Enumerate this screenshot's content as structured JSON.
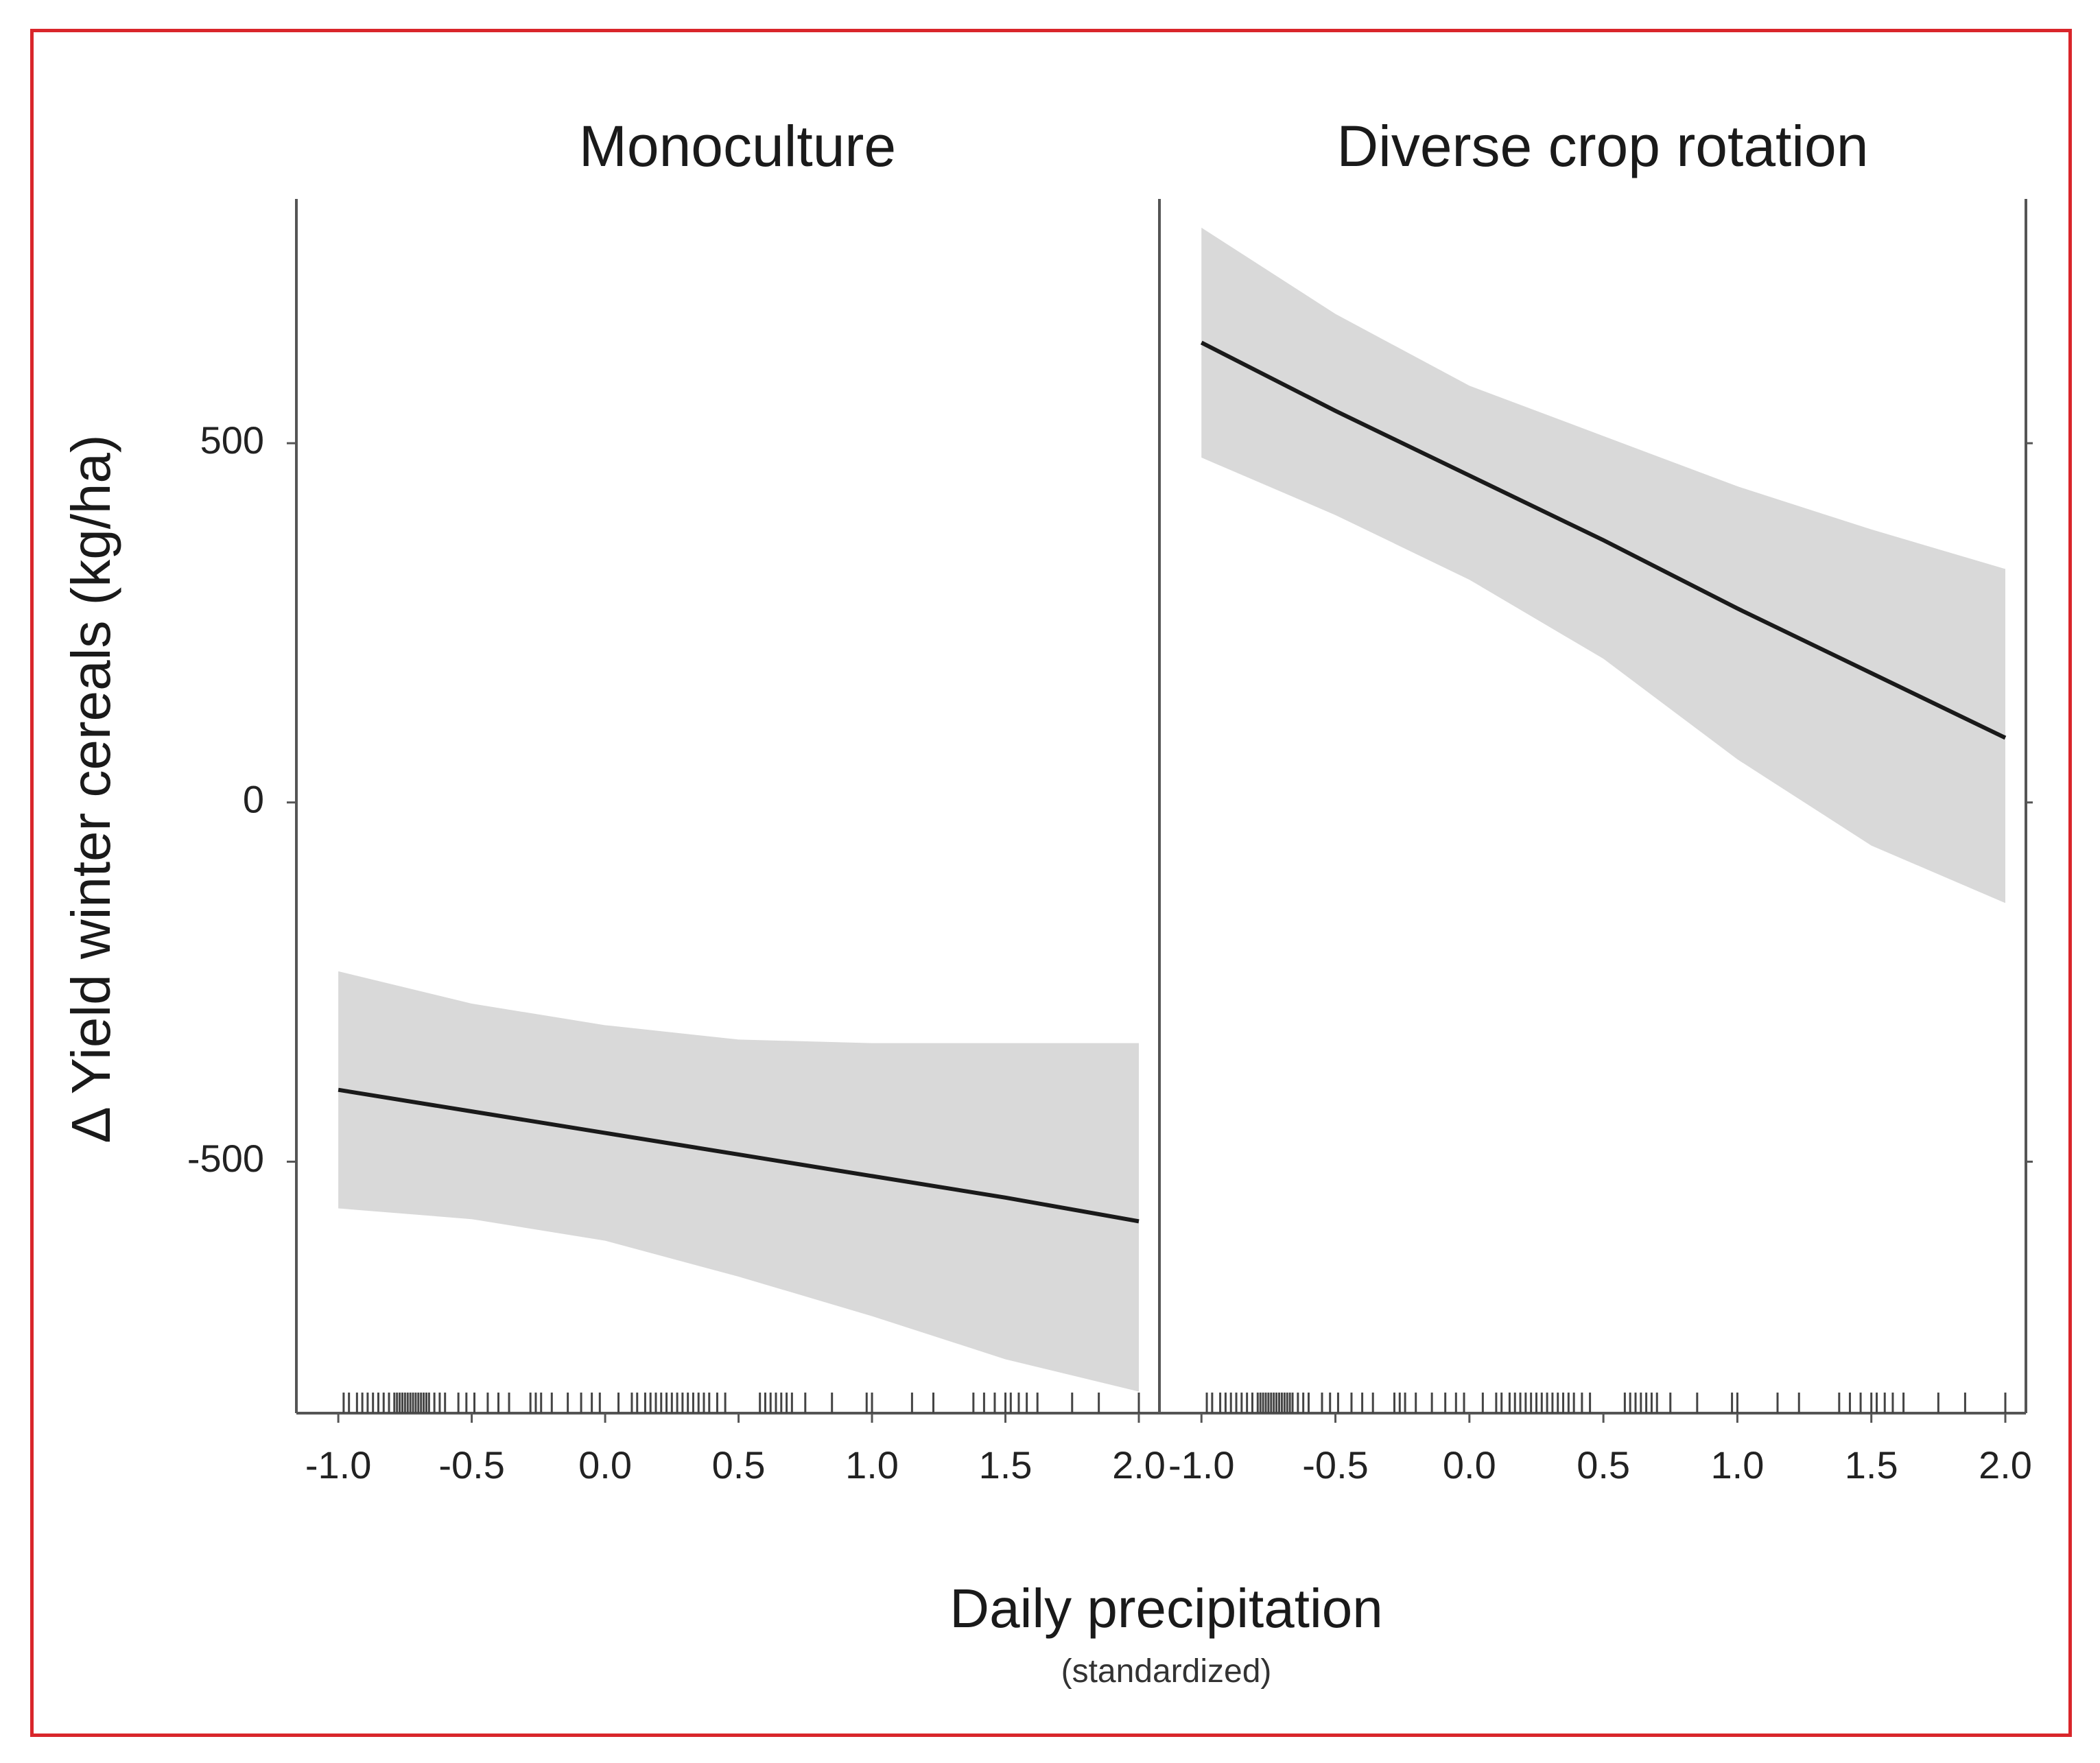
{
  "chart_data": {
    "type": "line",
    "ylabel": "Δ Yield winter cereals (kg/ha)",
    "xlabel": "Daily precipitation",
    "xlabel_sub": "(standardized)",
    "ylim": [
      -850,
      840
    ],
    "y_ticks": [
      500,
      0,
      -500
    ],
    "y_tick_labels": [
      "500",
      "0",
      "-500"
    ],
    "colors": {
      "line": "#1a1a1a",
      "ribbon": "#d9d9d9",
      "axis": "#555555",
      "rug": "#444444",
      "frame": "#d9262b"
    },
    "rug_x": [
      -0.98,
      -0.96,
      -0.93,
      -0.91,
      -0.89,
      -0.87,
      -0.85,
      -0.83,
      -0.81,
      -0.79,
      -0.78,
      -0.77,
      -0.76,
      -0.75,
      -0.74,
      -0.73,
      -0.72,
      -0.71,
      -0.7,
      -0.69,
      -0.68,
      -0.67,
      -0.66,
      -0.64,
      -0.62,
      -0.6,
      -0.55,
      -0.52,
      -0.49,
      -0.44,
      -0.4,
      -0.36,
      -0.28,
      -0.26,
      -0.24,
      -0.2,
      -0.14,
      -0.09,
      -0.05,
      -0.02,
      0.05,
      0.1,
      0.12,
      0.15,
      0.17,
      0.19,
      0.21,
      0.23,
      0.25,
      0.27,
      0.29,
      0.31,
      0.33,
      0.35,
      0.37,
      0.39,
      0.42,
      0.45,
      0.58,
      0.6,
      0.62,
      0.64,
      0.66,
      0.68,
      0.7,
      0.75,
      0.85,
      0.98,
      1.0,
      1.15,
      1.23,
      1.38,
      1.42,
      1.46,
      1.5,
      1.52,
      1.55,
      1.58,
      1.62,
      1.75,
      1.85,
      2.0
    ],
    "panels": [
      {
        "title": "Monoculture",
        "x_ticks": [
          -1.0,
          -0.5,
          0.0,
          0.5,
          1.0,
          1.5,
          2.0
        ],
        "x_tick_labels": [
          "-1.0",
          "-0.5",
          "0.0",
          "0.5",
          "1.0",
          "1.5",
          "2.0"
        ],
        "xlim": [
          -1.08,
          2.0
        ],
        "series": [
          {
            "name": "Monoculture fit",
            "x": [
              -1.0,
              -0.5,
              0.0,
              0.5,
              1.0,
              1.5,
              2.0
            ],
            "y": [
              -400,
              -430,
              -460,
              -490,
              -520,
              -550,
              -583
            ],
            "lower": [
              -565,
              -580,
              -610,
              -660,
              -715,
              -775,
              -820
            ],
            "upper": [
              -235,
              -280,
              -310,
              -330,
              -335,
              -335,
              -335
            ]
          }
        ]
      },
      {
        "title": "Diverse crop rotation",
        "x_ticks": [
          -1.0,
          -0.5,
          0.0,
          0.5,
          1.0,
          1.5,
          2.0
        ],
        "x_tick_labels": [
          "-1.0",
          "-0.5",
          "0.0",
          "0.5",
          "1.0",
          "1.5",
          "2.0"
        ],
        "xlim": [
          -1.08,
          2.0
        ],
        "series": [
          {
            "name": "Diverse crop rotation fit",
            "x": [
              -1.0,
              -0.5,
              0.0,
              0.5,
              1.0,
              1.5,
              2.0
            ],
            "y": [
              640,
              545,
              455,
              365,
              270,
              180,
              90
            ],
            "lower": [
              480,
              400,
              310,
              200,
              60,
              -60,
              -140
            ],
            "upper": [
              800,
              680,
              580,
              510,
              440,
              380,
              325
            ]
          }
        ]
      }
    ]
  }
}
